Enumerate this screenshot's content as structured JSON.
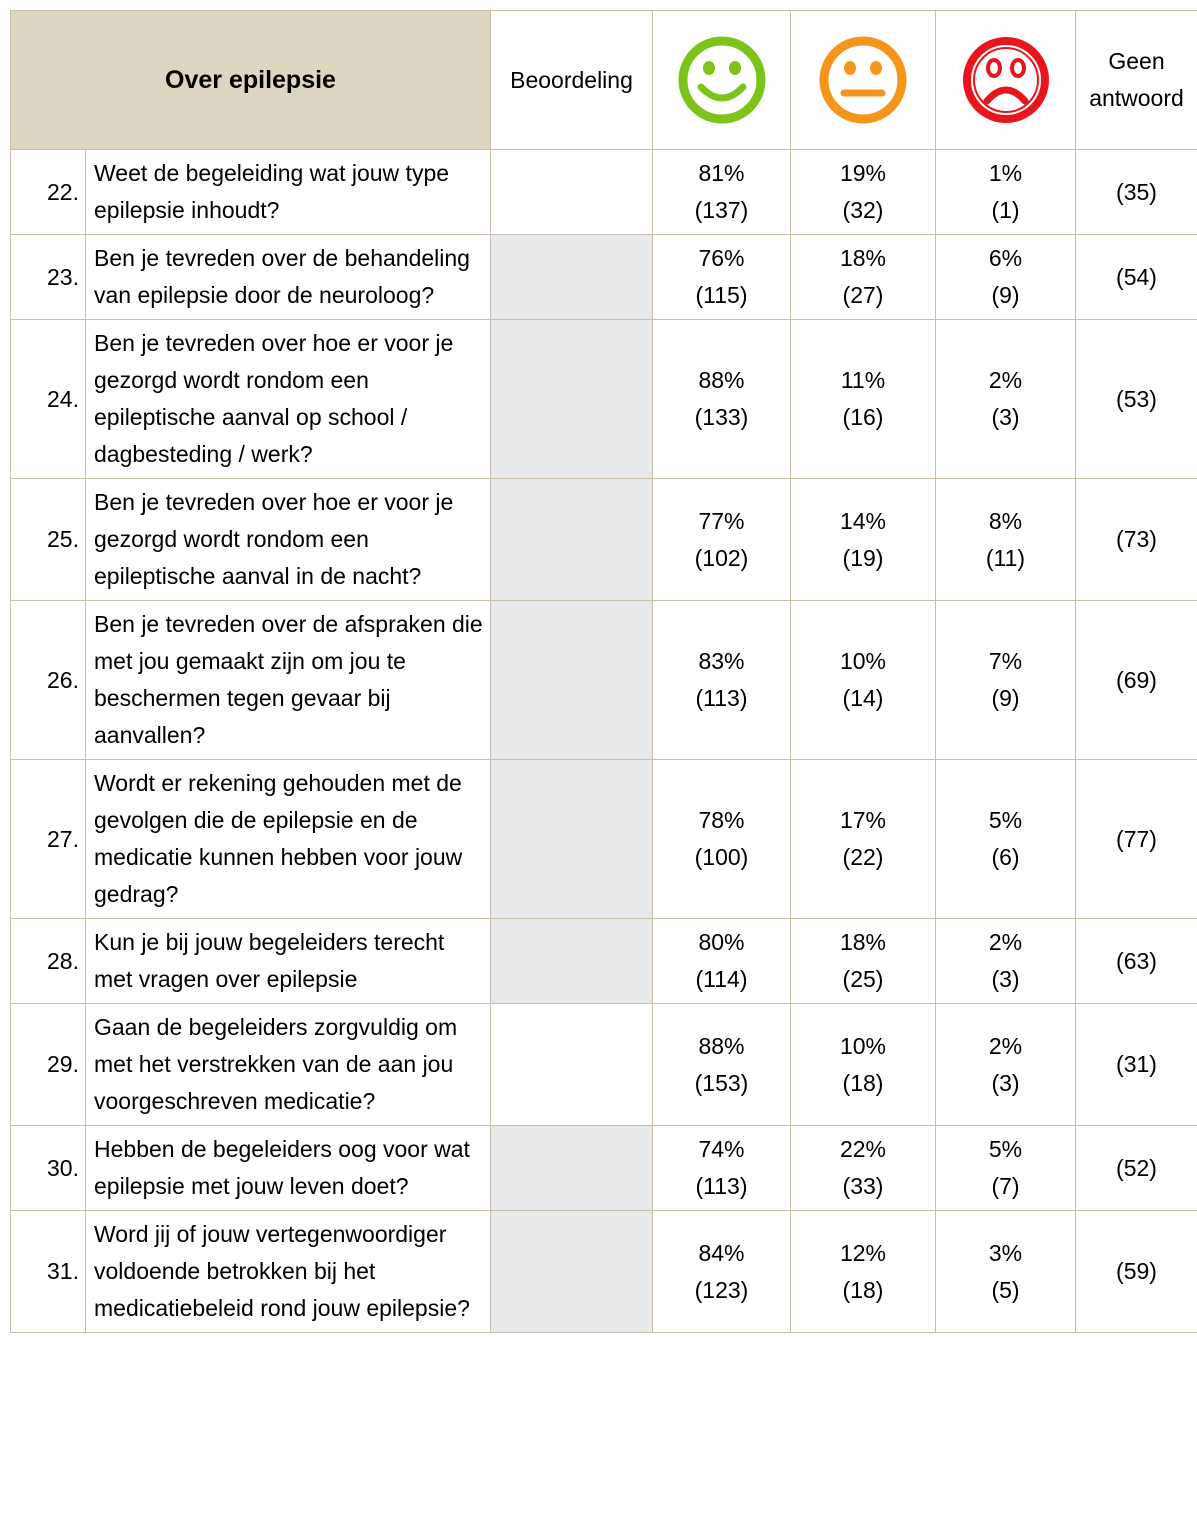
{
  "header": {
    "title": "Over epilepsie",
    "rating": "Beoordeling",
    "no_answer": "Geen antwoord"
  },
  "table": {
    "rows": [
      [
        "22.",
        "Weet de begeleiding wat jouw type epilepsie inhoudt?",
        "81%",
        "(137)",
        "19%",
        "(32)",
        "1%",
        "(1)",
        "(35)"
      ],
      [
        "23.",
        "Ben je tevreden over de behandeling van epilepsie door de neuroloog?",
        "76%",
        "(115)",
        "18%",
        "(27)",
        "6%",
        "(9)",
        "(54)"
      ],
      [
        "24.",
        "Ben je tevreden over hoe er voor je gezorgd wordt rondom een epileptische aanval op school / dagbesteding / werk?",
        "88%",
        "(133)",
        "11%",
        "(16)",
        "2%",
        "(3)",
        "(53)"
      ],
      [
        "25.",
        "Ben je tevreden over hoe er voor je gezorgd wordt rondom een epileptische aanval in de nacht?",
        "77%",
        "(102)",
        "14%",
        "(19)",
        "8%",
        "(11)",
        "(73)"
      ],
      [
        "26.",
        "Ben je tevreden over de afspraken die met jou gemaakt zijn om jou te beschermen tegen gevaar bij aanvallen?",
        "83%",
        "(113)",
        "10%",
        "(14)",
        "7%",
        "(9)",
        "(69)"
      ],
      [
        "27.",
        "Wordt er rekening gehouden met de gevolgen die de epilepsie en de medicatie kunnen hebben voor jouw gedrag?",
        "78%",
        "(100)",
        "17%",
        "(22)",
        "5%",
        "(6)",
        "(77)"
      ],
      [
        "28.",
        "Kun je bij jouw begeleiders terecht met vragen over epilepsie",
        "80%",
        "(114)",
        "18%",
        "(25)",
        "2%",
        "(3)",
        "(63)"
      ],
      [
        "29.",
        "Gaan de begeleiders zorgvuldig om met het verstrekken van de aan jou voorgeschreven medicatie?",
        "88%",
        "(153)",
        "10%",
        "(18)",
        "2%",
        "(3)",
        "(31)"
      ],
      [
        "30.",
        "Hebben de begeleiders oog voor wat epilepsie met jouw leven doet?",
        "74%",
        "(113)",
        "22%",
        "(33)",
        "5%",
        "(7)",
        "(52)"
      ],
      [
        "31.",
        "Word jij of jouw vertegenwoordiger voldoende betrokken bij het medicatiebeleid rond jouw epilepsie?",
        "84%",
        "(123)",
        "12%",
        "(18)",
        "3%",
        "(5)",
        "(59)"
      ]
    ]
  }
}
